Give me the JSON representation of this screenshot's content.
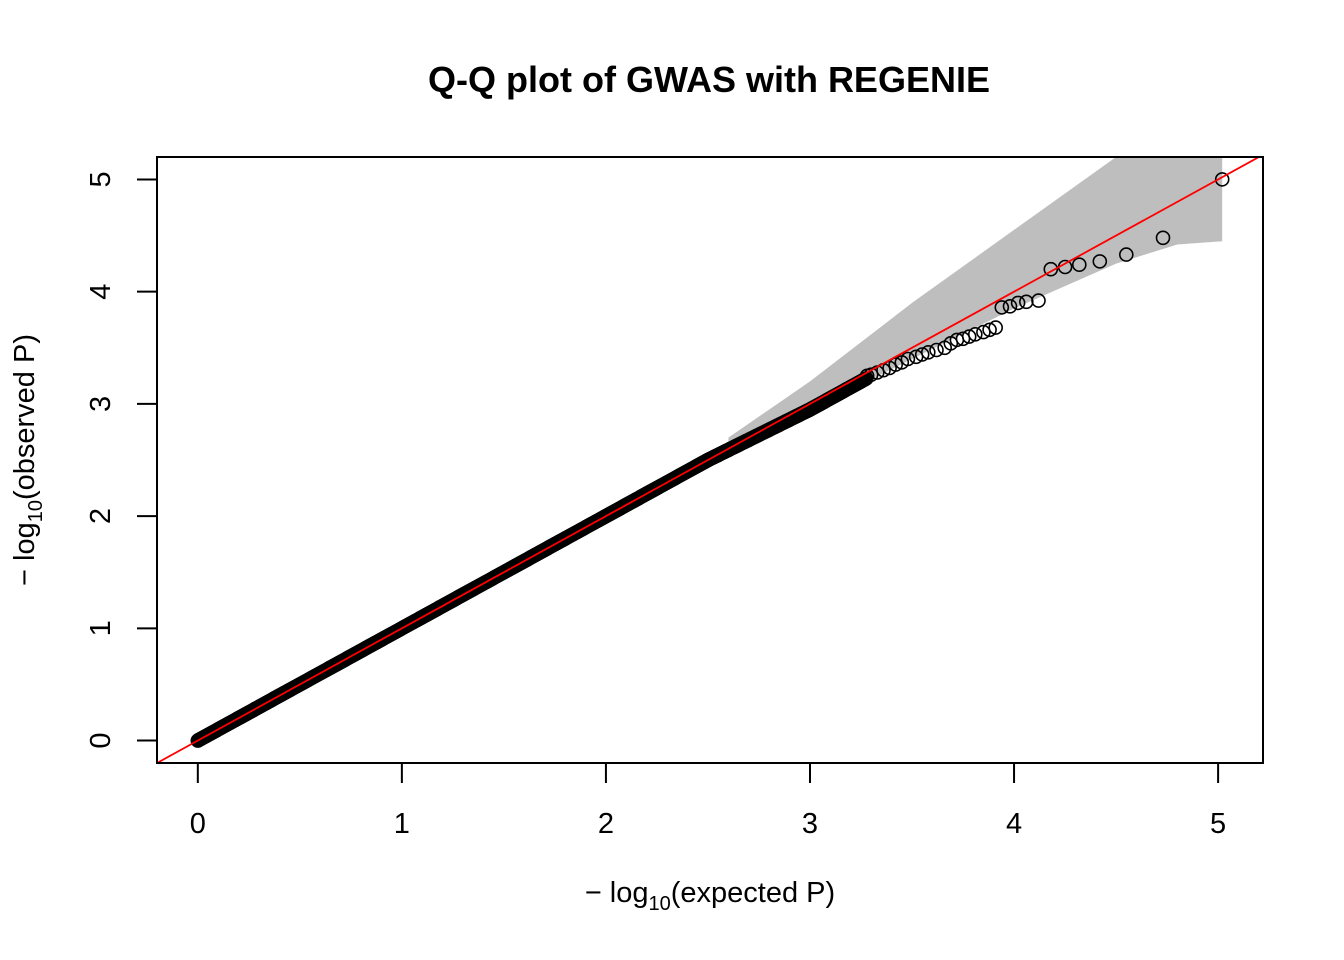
{
  "chart_data": {
    "type": "scatter",
    "title": "Q-Q plot of GWAS with REGENIE",
    "xlabel": {
      "prefix": "− log",
      "sub": "10",
      "suffix": "(expected P)"
    },
    "ylabel": {
      "prefix": "− log",
      "sub": "10",
      "suffix": "(observed P)"
    },
    "xlim": [
      -0.2,
      5.22
    ],
    "ylim": [
      -0.2,
      5.2
    ],
    "x_ticks": [
      0,
      1,
      2,
      3,
      4,
      5
    ],
    "y_ticks": [
      0,
      1,
      2,
      3,
      4,
      5
    ],
    "grid": false,
    "colors": {
      "reference_line": "#ff0000",
      "confidence_band": "#bebebe",
      "points": "#000000"
    },
    "confidence_band": {
      "x": [
        2.6,
        3.0,
        3.5,
        4.0,
        4.5,
        4.8,
        5.02
      ],
      "upper": [
        2.7,
        3.2,
        3.9,
        4.55,
        5.2,
        5.2,
        5.2
      ],
      "lower": [
        2.55,
        2.95,
        3.4,
        3.85,
        4.25,
        4.42,
        4.45
      ]
    },
    "reference_line": {
      "x": [
        -0.2,
        5.22
      ],
      "y": [
        -0.2,
        5.22
      ]
    },
    "series": [
      {
        "tail_points": {
          "x": [
            3.28,
            3.3,
            3.33,
            3.36,
            3.39,
            3.42,
            3.45,
            3.48,
            3.52,
            3.55,
            3.58,
            3.62,
            3.66,
            3.69,
            3.72,
            3.75,
            3.78,
            3.81,
            3.85,
            3.88,
            3.91,
            3.94,
            3.98,
            4.02,
            4.06,
            4.12,
            4.18,
            4.25,
            4.32,
            4.42,
            4.55,
            4.73,
            5.02
          ],
          "y": [
            3.25,
            3.26,
            3.28,
            3.3,
            3.32,
            3.35,
            3.37,
            3.4,
            3.42,
            3.44,
            3.46,
            3.48,
            3.5,
            3.54,
            3.57,
            3.58,
            3.6,
            3.62,
            3.64,
            3.66,
            3.68,
            3.86,
            3.87,
            3.9,
            3.91,
            3.92,
            4.2,
            4.22,
            4.24,
            4.27,
            4.33,
            4.48,
            5.0
          ]
        }
      }
    ]
  }
}
